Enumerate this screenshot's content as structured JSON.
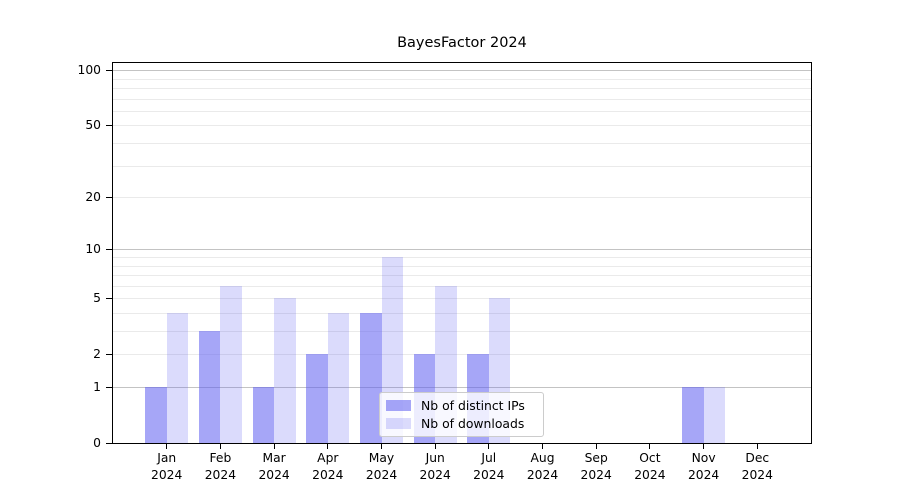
{
  "chart_data": {
    "type": "bar",
    "title": "BayesFactor 2024",
    "scale": "log1p",
    "grid": "on",
    "categories": [
      "Jan",
      "Feb",
      "Mar",
      "Apr",
      "May",
      "Jun",
      "Jul",
      "Aug",
      "Sep",
      "Oct",
      "Nov",
      "Dec"
    ],
    "category_year": "2024",
    "series": [
      {
        "name": "Nb of distinct IPs",
        "values": [
          1,
          3,
          1,
          2,
          4,
          2,
          2,
          0,
          0,
          0,
          1,
          0
        ],
        "color": "rgba(92, 92, 240, 0.55)"
      },
      {
        "name": "Nb of downloads",
        "values": [
          4,
          6,
          5,
          4,
          9,
          6,
          5,
          0,
          0,
          0,
          1,
          0
        ],
        "color": "rgba(92, 92, 240, 0.22)"
      }
    ],
    "y_ticks": [
      0,
      1,
      2,
      5,
      10,
      20,
      50,
      100
    ],
    "ylim": [
      0,
      110
    ],
    "major_gridlines": [
      1,
      10,
      100
    ],
    "minor_gridlines": [
      2,
      3,
      4,
      5,
      6,
      7,
      8,
      9,
      20,
      30,
      40,
      50,
      60,
      70,
      80,
      90
    ],
    "legend_position": "lower center",
    "colors": {
      "bar_distinct_ips": "#a8a8f4",
      "bar_downloads": "#dbdbfa",
      "major_grid": "#c3c3c3",
      "minor_grid": "#eaeaea",
      "axis": "#000000",
      "legend_border": "#cccccc"
    }
  }
}
